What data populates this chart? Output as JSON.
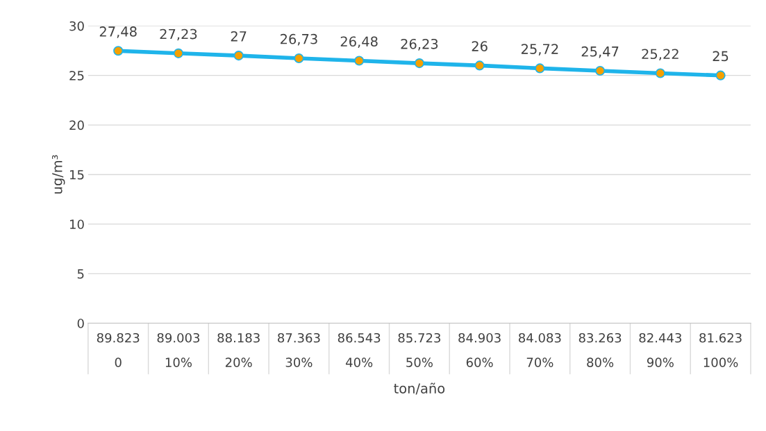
{
  "chart_data": {
    "type": "line",
    "xlabel": "ton/año",
    "ylabel": "ug/m³",
    "categories": [
      "89.823\n0",
      "89.003\n10%",
      "88.183\n20%",
      "87.363\n30%",
      "86.543\n40%",
      "85.723\n50%",
      "84.903\n60%",
      "84.083\n70%",
      "83.263\n80%",
      "82.443\n90%",
      "81.623\n100%"
    ],
    "series": [
      {
        "color": "#1fb4ea",
        "colors": [
          "#f5a000",
          "#f5a000",
          "#f5a000",
          "#f5a000",
          "#f5a000",
          "#f5a000",
          "#f5a000",
          "#f5a000",
          "#f5a000",
          "#f5a000",
          "#f5a000"
        ],
        "values": [
          27.48,
          27.23,
          27,
          26.73,
          26.48,
          26.23,
          26,
          25.72,
          25.47,
          25.22,
          25
        ],
        "value_labels": [
          "27,48",
          "27,23",
          "27",
          "26,73",
          "26,48",
          "26,23",
          "26",
          "25,72",
          "25,47",
          "25,22",
          "25"
        ]
      }
    ],
    "ylim": [
      0,
      30
    ],
    "yticks": [
      0,
      5,
      10,
      15,
      20,
      25,
      30
    ],
    "grid": "y",
    "marker": "circle",
    "line_style": "solid",
    "legend": false
  }
}
